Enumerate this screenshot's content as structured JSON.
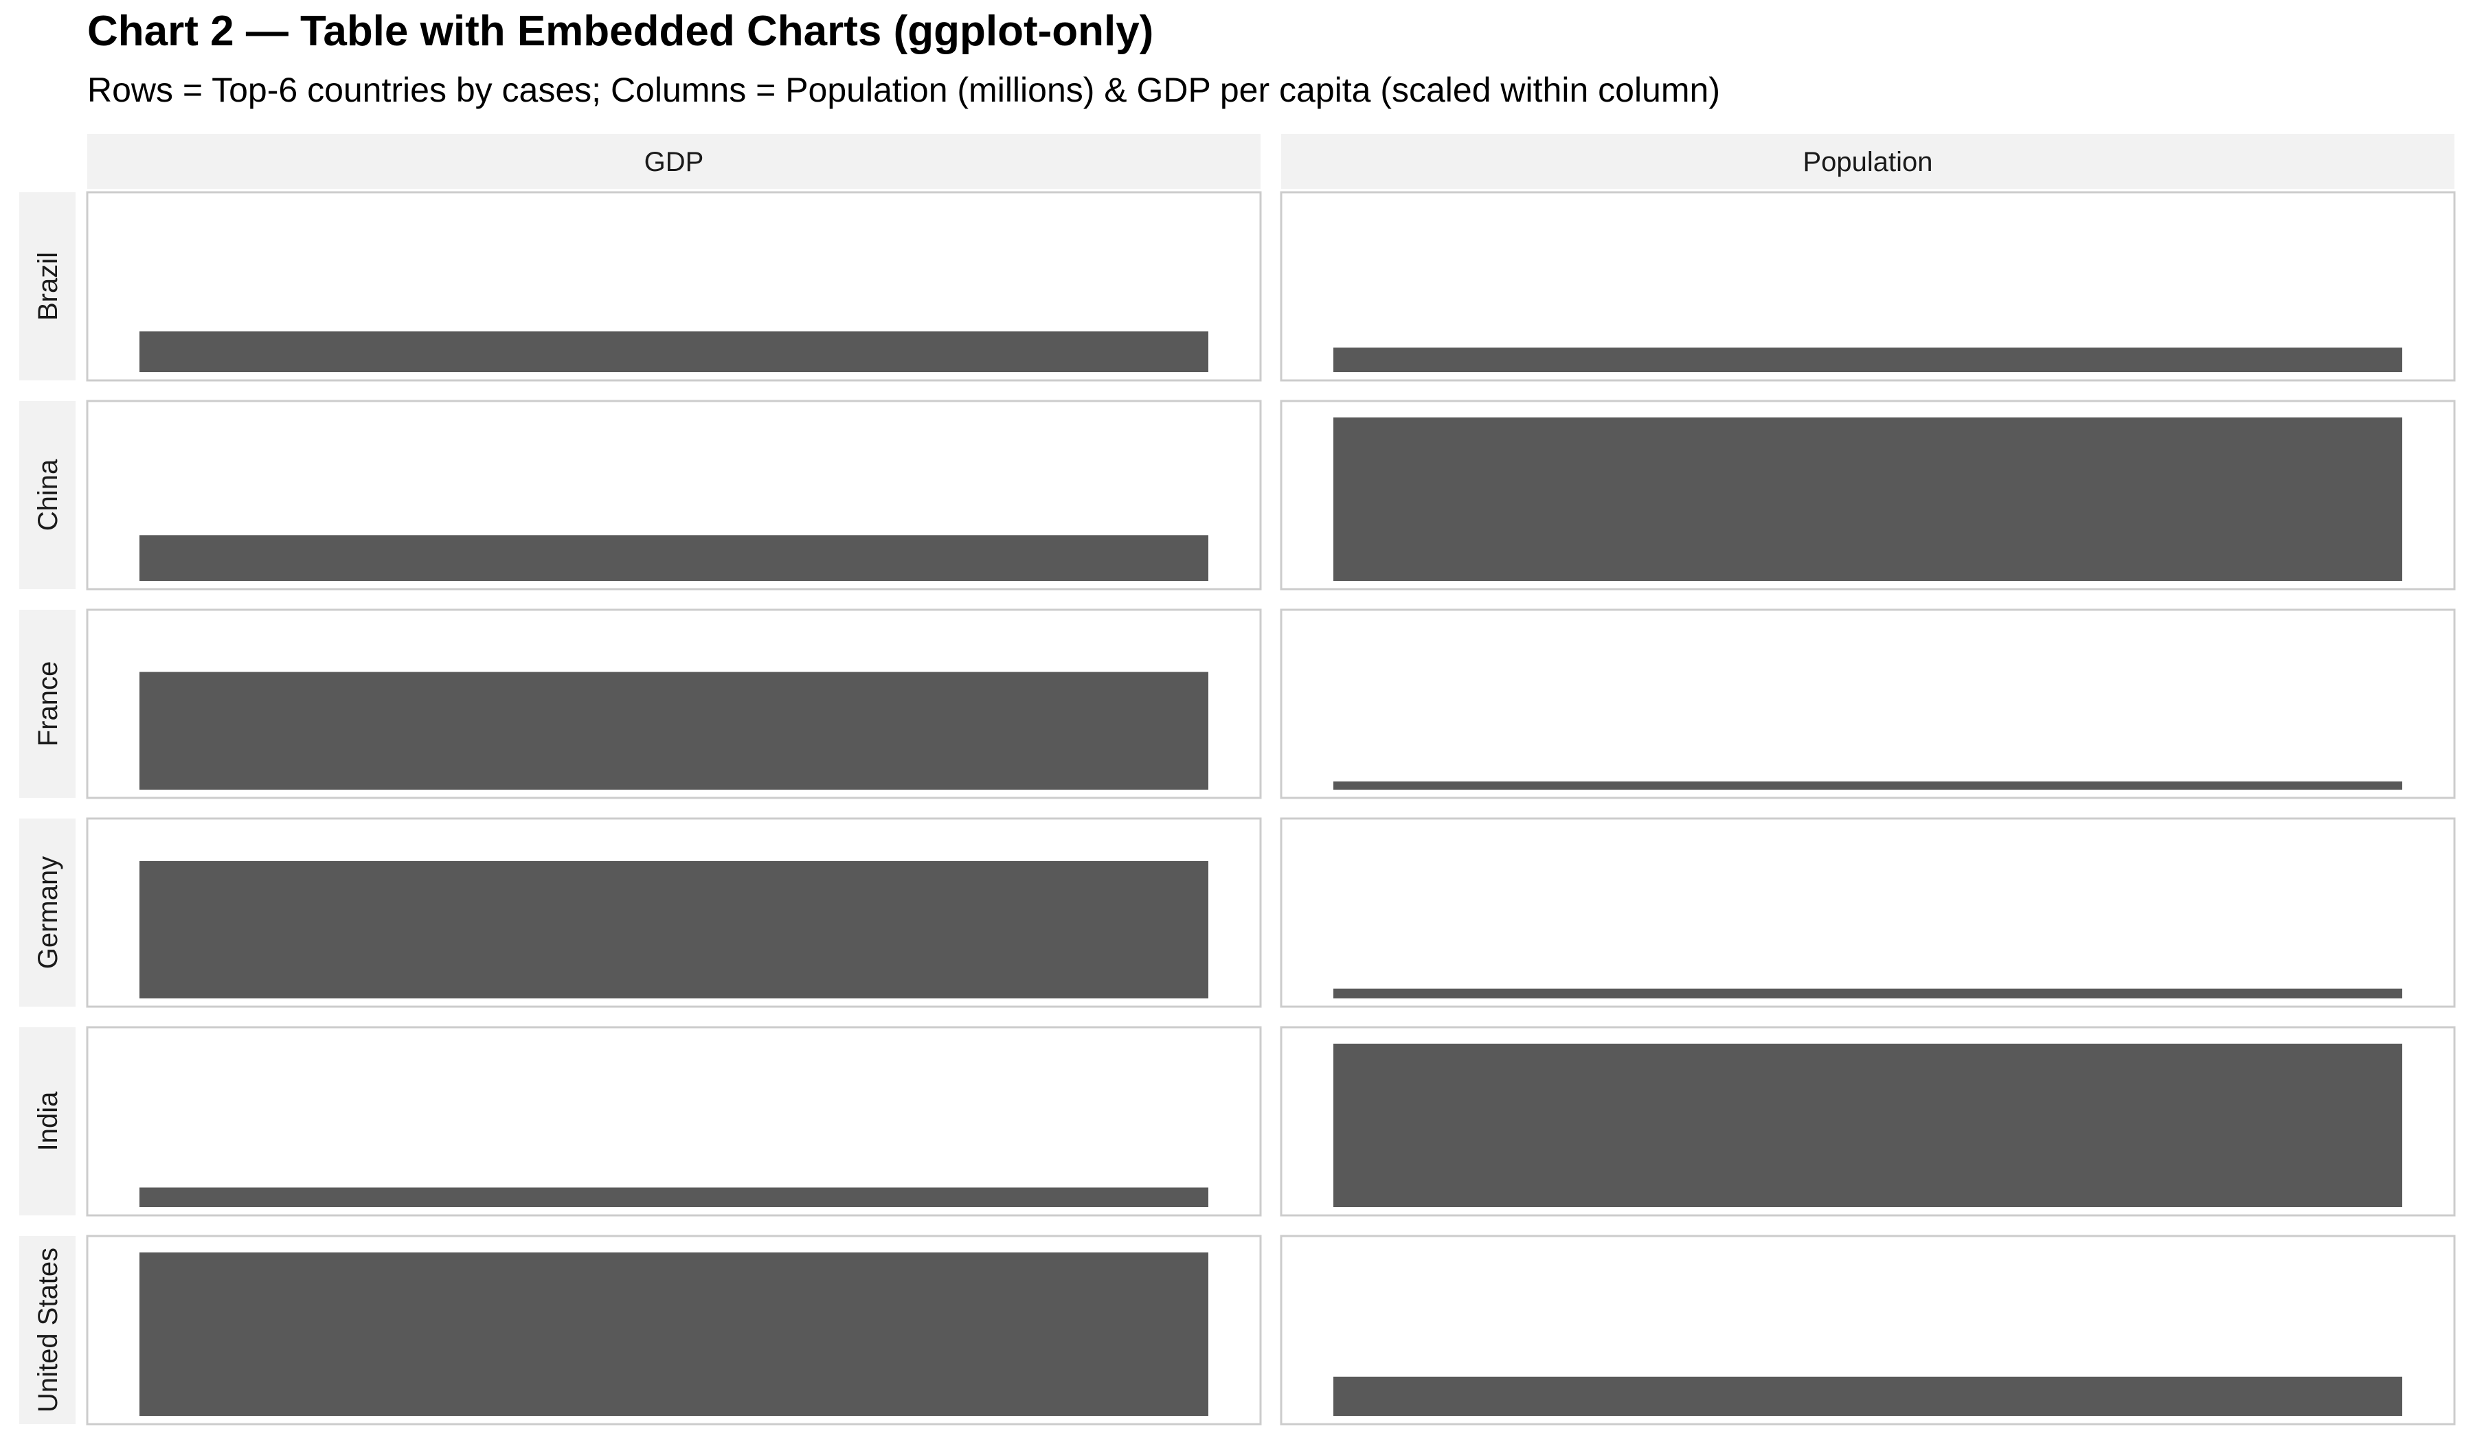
{
  "title": "Chart 2 — Table with Embedded Charts (ggplot-only)",
  "subtitle": "Rows = Top-6 countries by cases; Columns = Population (millions) & GDP per capita (scaled within column)",
  "colors": {
    "bar": "#595959",
    "strip_background": "#f2f2f2",
    "panel_border": "#cccccc"
  },
  "chart_data": {
    "type": "bar",
    "layout": "facet-grid",
    "columns": [
      "GDP",
      "Population"
    ],
    "rows": [
      "Brazil",
      "China",
      "France",
      "Germany",
      "India",
      "United States"
    ],
    "series": [
      {
        "name": "GDP",
        "values": [
          0.25,
          0.28,
          0.72,
          0.84,
          0.12,
          1.0
        ]
      },
      {
        "name": "Population",
        "values": [
          0.15,
          1.0,
          0.05,
          0.06,
          1.0,
          0.24
        ]
      }
    ],
    "ylim": [
      0,
      1.05
    ],
    "grid": false,
    "legend": "none"
  }
}
